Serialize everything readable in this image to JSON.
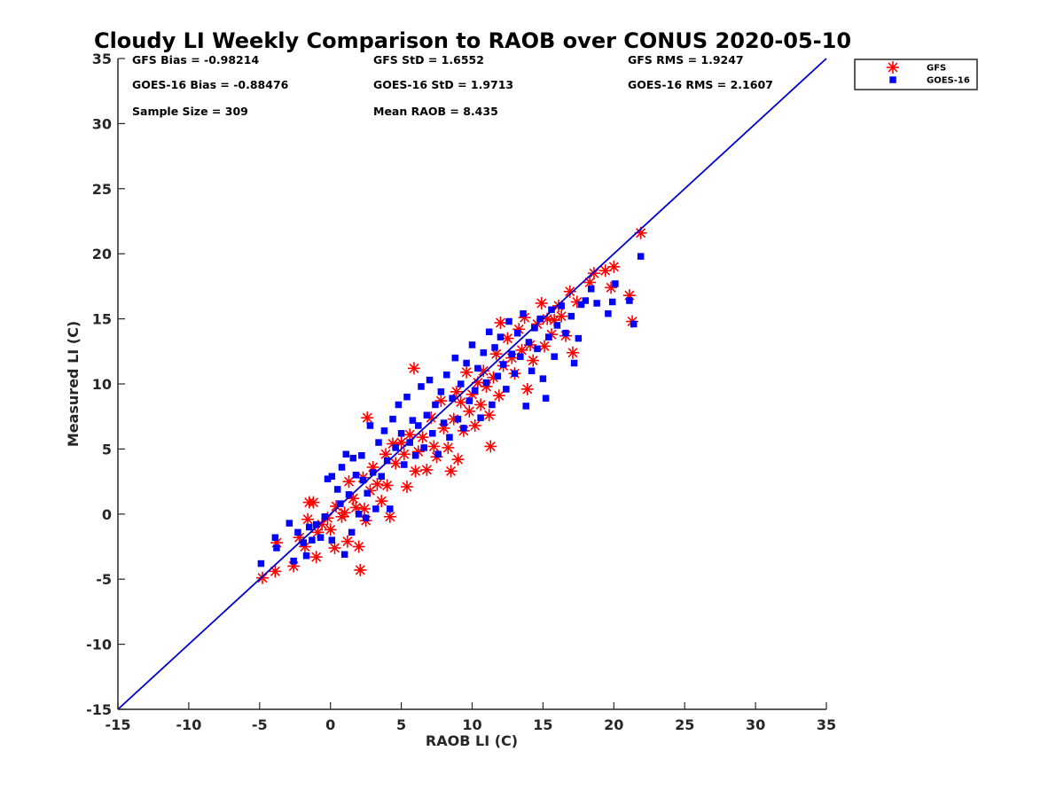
{
  "chart_data": {
    "type": "scatter",
    "title": "Cloudy LI Weekly Comparison to RAOB over CONUS 2020-05-10",
    "xlabel": "RAOB LI (C)",
    "ylabel": "Measured LI (C)",
    "xlim": [
      -15,
      35
    ],
    "ylim": [
      -15,
      35
    ],
    "xticks": [
      "-15",
      "-10",
      "-5",
      "0",
      "5",
      "10",
      "15",
      "20",
      "25",
      "30",
      "35"
    ],
    "yticks": [
      "-15",
      "-10",
      "-5",
      "0",
      "5",
      "10",
      "15",
      "20",
      "25",
      "30",
      "35"
    ],
    "grid": false,
    "legend_position": "top-right",
    "reference_line": {
      "from": [
        -15,
        -15
      ],
      "to": [
        35,
        35
      ],
      "color": "#0000cc"
    },
    "stats": [
      [
        "GFS Bias = -0.98214",
        "GFS StD = 1.6552",
        "GFS RMS = 1.9247"
      ],
      [
        "GOES-16 Bias = -0.88476",
        "GOES-16 StD = 1.9713",
        "GOES-16 RMS = 2.1607"
      ],
      [
        "Sample Size = 309",
        "Mean RAOB = 8.435",
        ""
      ]
    ],
    "series": [
      {
        "name": "GFS",
        "marker": "asterisk",
        "color": "#ff0000",
        "points": [
          [
            -4.8,
            -4.9
          ],
          [
            -3.9,
            -4.4
          ],
          [
            -3.8,
            -2.2
          ],
          [
            -2.6,
            -4.0
          ],
          [
            -2.2,
            -1.8
          ],
          [
            -1.8,
            -2.5
          ],
          [
            -1.6,
            -0.4
          ],
          [
            -1.5,
            0.9
          ],
          [
            -1.2,
            0.9
          ],
          [
            -1.0,
            -3.3
          ],
          [
            -0.9,
            -1.4
          ],
          [
            -0.6,
            -0.8
          ],
          [
            -0.2,
            -0.3
          ],
          [
            0.0,
            -1.2
          ],
          [
            0.3,
            -2.6
          ],
          [
            0.4,
            0.6
          ],
          [
            0.8,
            -0.2
          ],
          [
            1.0,
            0.1
          ],
          [
            1.2,
            -2.1
          ],
          [
            1.3,
            2.5
          ],
          [
            1.6,
            1.2
          ],
          [
            1.8,
            0.5
          ],
          [
            2.0,
            -2.5
          ],
          [
            2.1,
            -4.3
          ],
          [
            2.3,
            2.8
          ],
          [
            2.4,
            0.4
          ],
          [
            2.5,
            -0.5
          ],
          [
            2.6,
            7.4
          ],
          [
            2.8,
            1.8
          ],
          [
            3.0,
            3.6
          ],
          [
            3.3,
            2.3
          ],
          [
            3.6,
            1.0
          ],
          [
            3.9,
            4.6
          ],
          [
            4.0,
            2.2
          ],
          [
            4.2,
            -0.2
          ],
          [
            4.4,
            5.4
          ],
          [
            4.6,
            3.9
          ],
          [
            5.0,
            5.5
          ],
          [
            5.2,
            4.6
          ],
          [
            5.4,
            2.1
          ],
          [
            5.6,
            6.1
          ],
          [
            5.9,
            11.2
          ],
          [
            6.0,
            3.3
          ],
          [
            6.2,
            4.8
          ],
          [
            6.5,
            5.9
          ],
          [
            6.8,
            3.4
          ],
          [
            7.1,
            7.4
          ],
          [
            7.3,
            5.2
          ],
          [
            7.5,
            4.4
          ],
          [
            7.8,
            8.7
          ],
          [
            8.0,
            6.6
          ],
          [
            8.3,
            5.1
          ],
          [
            8.5,
            3.3
          ],
          [
            8.7,
            7.3
          ],
          [
            8.9,
            9.4
          ],
          [
            9.0,
            4.2
          ],
          [
            9.2,
            8.6
          ],
          [
            9.4,
            6.4
          ],
          [
            9.6,
            10.9
          ],
          [
            9.8,
            7.9
          ],
          [
            10.0,
            9.2
          ],
          [
            10.2,
            6.8
          ],
          [
            10.4,
            10.1
          ],
          [
            10.6,
            8.4
          ],
          [
            10.8,
            11.0
          ],
          [
            11.0,
            9.8
          ],
          [
            11.2,
            7.6
          ],
          [
            11.3,
            5.2
          ],
          [
            11.5,
            10.5
          ],
          [
            11.7,
            12.3
          ],
          [
            11.9,
            9.1
          ],
          [
            12.0,
            14.7
          ],
          [
            12.2,
            11.4
          ],
          [
            12.5,
            13.5
          ],
          [
            12.8,
            12.0
          ],
          [
            13.0,
            10.8
          ],
          [
            13.3,
            14.2
          ],
          [
            13.5,
            12.6
          ],
          [
            13.7,
            15.1
          ],
          [
            13.9,
            9.6
          ],
          [
            14.1,
            13.0
          ],
          [
            14.3,
            11.8
          ],
          [
            14.6,
            14.6
          ],
          [
            14.9,
            16.2
          ],
          [
            15.1,
            12.9
          ],
          [
            15.3,
            15.0
          ],
          [
            15.6,
            13.8
          ],
          [
            15.8,
            14.9
          ],
          [
            16.1,
            16.0
          ],
          [
            16.3,
            15.2
          ],
          [
            16.6,
            13.7
          ],
          [
            16.9,
            17.1
          ],
          [
            17.1,
            12.4
          ],
          [
            17.4,
            16.3
          ],
          [
            18.3,
            17.8
          ],
          [
            18.6,
            18.5
          ],
          [
            19.4,
            18.7
          ],
          [
            19.8,
            17.4
          ],
          [
            20.0,
            19.0
          ],
          [
            21.1,
            16.8
          ],
          [
            21.3,
            14.8
          ],
          [
            21.9,
            21.6
          ]
        ]
      },
      {
        "name": "GOES-16",
        "marker": "square",
        "color": "#0000ff",
        "points": [
          [
            -4.9,
            -3.8
          ],
          [
            -3.9,
            -1.8
          ],
          [
            -3.8,
            -2.6
          ],
          [
            -2.9,
            -0.7
          ],
          [
            -2.6,
            -3.6
          ],
          [
            -2.3,
            -1.4
          ],
          [
            -1.9,
            -2.2
          ],
          [
            -1.7,
            -3.2
          ],
          [
            -1.5,
            -1.0
          ],
          [
            -1.3,
            -2.0
          ],
          [
            -1.0,
            -0.8
          ],
          [
            -0.7,
            -1.8
          ],
          [
            -0.4,
            -0.2
          ],
          [
            -0.2,
            2.7
          ],
          [
            0.1,
            2.9
          ],
          [
            0.1,
            -2.0
          ],
          [
            0.5,
            1.9
          ],
          [
            0.7,
            0.8
          ],
          [
            0.8,
            3.6
          ],
          [
            1.0,
            -3.1
          ],
          [
            1.1,
            4.6
          ],
          [
            1.3,
            1.5
          ],
          [
            1.5,
            -1.4
          ],
          [
            1.6,
            4.3
          ],
          [
            1.8,
            3.0
          ],
          [
            2.0,
            0.0
          ],
          [
            2.2,
            4.5
          ],
          [
            2.3,
            2.6
          ],
          [
            2.5,
            -0.3
          ],
          [
            2.6,
            1.6
          ],
          [
            2.8,
            6.8
          ],
          [
            3.0,
            3.2
          ],
          [
            3.2,
            0.4
          ],
          [
            3.4,
            5.5
          ],
          [
            3.6,
            2.9
          ],
          [
            3.8,
            6.4
          ],
          [
            4.0,
            4.1
          ],
          [
            4.2,
            0.4
          ],
          [
            4.4,
            7.3
          ],
          [
            4.6,
            5.1
          ],
          [
            4.8,
            8.4
          ],
          [
            5.0,
            6.2
          ],
          [
            5.2,
            3.8
          ],
          [
            5.4,
            9.0
          ],
          [
            5.6,
            5.5
          ],
          [
            5.8,
            7.2
          ],
          [
            6.0,
            4.5
          ],
          [
            6.2,
            6.8
          ],
          [
            6.4,
            9.8
          ],
          [
            6.6,
            5.1
          ],
          [
            6.8,
            7.6
          ],
          [
            7.0,
            10.3
          ],
          [
            7.2,
            6.2
          ],
          [
            7.4,
            8.4
          ],
          [
            7.6,
            4.6
          ],
          [
            7.8,
            9.4
          ],
          [
            8.0,
            7.0
          ],
          [
            8.2,
            10.7
          ],
          [
            8.4,
            5.9
          ],
          [
            8.6,
            8.9
          ],
          [
            8.8,
            12.0
          ],
          [
            9.0,
            7.3
          ],
          [
            9.2,
            10.0
          ],
          [
            9.4,
            6.6
          ],
          [
            9.6,
            11.6
          ],
          [
            9.8,
            8.7
          ],
          [
            10.0,
            13.0
          ],
          [
            10.2,
            9.5
          ],
          [
            10.4,
            11.2
          ],
          [
            10.6,
            7.4
          ],
          [
            10.8,
            12.4
          ],
          [
            11.0,
            10.1
          ],
          [
            11.2,
            14.0
          ],
          [
            11.4,
            8.4
          ],
          [
            11.6,
            12.8
          ],
          [
            11.8,
            10.6
          ],
          [
            12.0,
            13.6
          ],
          [
            12.2,
            11.5
          ],
          [
            12.4,
            9.6
          ],
          [
            12.6,
            14.8
          ],
          [
            12.8,
            12.3
          ],
          [
            13.0,
            10.8
          ],
          [
            13.2,
            13.9
          ],
          [
            13.4,
            12.1
          ],
          [
            13.6,
            15.4
          ],
          [
            13.8,
            8.3
          ],
          [
            14.0,
            13.2
          ],
          [
            14.2,
            11.0
          ],
          [
            14.4,
            14.3
          ],
          [
            14.6,
            12.7
          ],
          [
            14.8,
            15.0
          ],
          [
            15.0,
            10.4
          ],
          [
            15.2,
            8.9
          ],
          [
            15.4,
            13.6
          ],
          [
            15.6,
            15.7
          ],
          [
            15.8,
            12.1
          ],
          [
            16.0,
            14.5
          ],
          [
            16.3,
            16.0
          ],
          [
            16.6,
            13.9
          ],
          [
            17.0,
            15.2
          ],
          [
            17.2,
            11.6
          ],
          [
            17.5,
            13.5
          ],
          [
            17.7,
            16.1
          ],
          [
            18.0,
            16.4
          ],
          [
            18.4,
            17.3
          ],
          [
            18.8,
            16.2
          ],
          [
            19.6,
            15.4
          ],
          [
            19.9,
            16.3
          ],
          [
            20.1,
            17.7
          ],
          [
            21.1,
            16.4
          ],
          [
            21.4,
            14.6
          ],
          [
            21.9,
            19.8
          ]
        ]
      }
    ]
  }
}
